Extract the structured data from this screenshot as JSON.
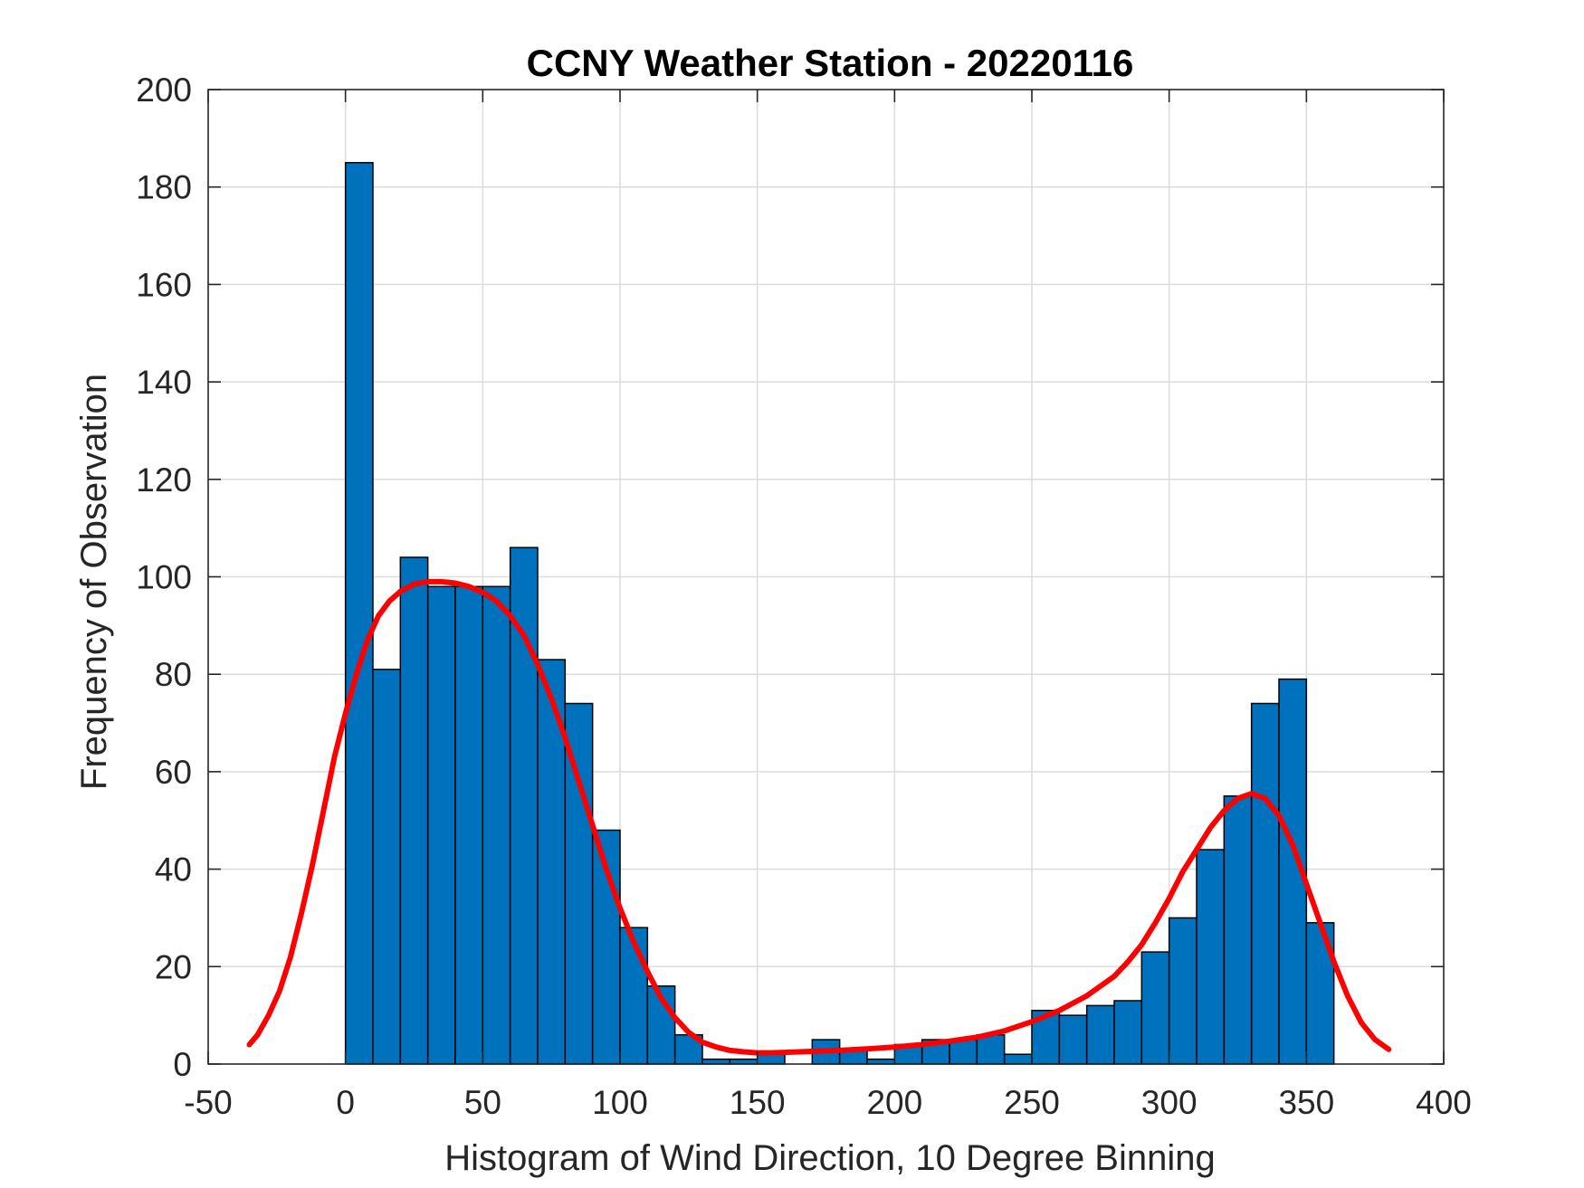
{
  "chart_data": {
    "type": "bar",
    "title": "CCNY Weather Station - 20220116",
    "xlabel": "Histogram of Wind Direction, 10 Degree Binning",
    "ylabel": "Frequency of Observation",
    "xlim": [
      -50,
      400
    ],
    "ylim": [
      0,
      200
    ],
    "xticks": [
      "-50",
      "0",
      "50",
      "100",
      "150",
      "200",
      "250",
      "300",
      "350",
      "400"
    ],
    "yticks": [
      "0",
      "20",
      "40",
      "60",
      "80",
      "100",
      "120",
      "140",
      "160",
      "180",
      "200"
    ],
    "grid": true,
    "bin_width": 10,
    "bin_edges": [
      0,
      10,
      20,
      30,
      40,
      50,
      60,
      70,
      80,
      90,
      100,
      110,
      120,
      130,
      140,
      150,
      160,
      170,
      180,
      190,
      200,
      210,
      220,
      230,
      240,
      250,
      260,
      270,
      280,
      290,
      300,
      310,
      320,
      330,
      340,
      350,
      360
    ],
    "values": [
      185,
      81,
      104,
      98,
      98,
      98,
      106,
      83,
      74,
      48,
      28,
      16,
      6,
      1,
      1,
      2,
      0,
      5,
      3,
      1,
      4,
      5,
      5,
      6,
      2,
      11,
      10,
      12,
      13,
      23,
      30,
      44,
      55,
      74,
      79,
      29
    ],
    "fit_curve": {
      "x": [
        -35,
        -32,
        -28,
        -24,
        -20,
        -16,
        -12,
        -8,
        -4,
        0,
        4,
        8,
        12,
        16,
        20,
        25,
        30,
        35,
        40,
        45,
        50,
        55,
        60,
        65,
        70,
        75,
        80,
        85,
        90,
        95,
        100,
        105,
        110,
        115,
        120,
        125,
        130,
        135,
        140,
        145,
        150,
        155,
        160,
        170,
        180,
        190,
        200,
        210,
        220,
        230,
        240,
        250,
        260,
        270,
        280,
        285,
        290,
        295,
        300,
        305,
        310,
        315,
        320,
        325,
        330,
        335,
        340,
        345,
        350,
        355,
        360,
        365,
        370,
        375,
        380
      ],
      "y": [
        4,
        6,
        10,
        15,
        22,
        31,
        41,
        52,
        63,
        72,
        80,
        87,
        92,
        95,
        97,
        98.5,
        99,
        99,
        98.7,
        98,
        96.8,
        95,
        92,
        88,
        82,
        75,
        67,
        58,
        49,
        40,
        32,
        25,
        19,
        13.5,
        9.5,
        6.5,
        4.5,
        3.5,
        2.8,
        2.5,
        2.3,
        2.3,
        2.4,
        2.6,
        2.8,
        3.1,
        3.5,
        4,
        4.7,
        5.5,
        6.8,
        8.7,
        11,
        14,
        18,
        21,
        24.5,
        29,
        34,
        39.5,
        44,
        48.5,
        52,
        54.5,
        55.5,
        54.5,
        51,
        45,
        37,
        29,
        21,
        14,
        8.5,
        5,
        3
      ]
    },
    "colors": {
      "bar": "#0072BD",
      "fit": "#FF0000"
    }
  }
}
